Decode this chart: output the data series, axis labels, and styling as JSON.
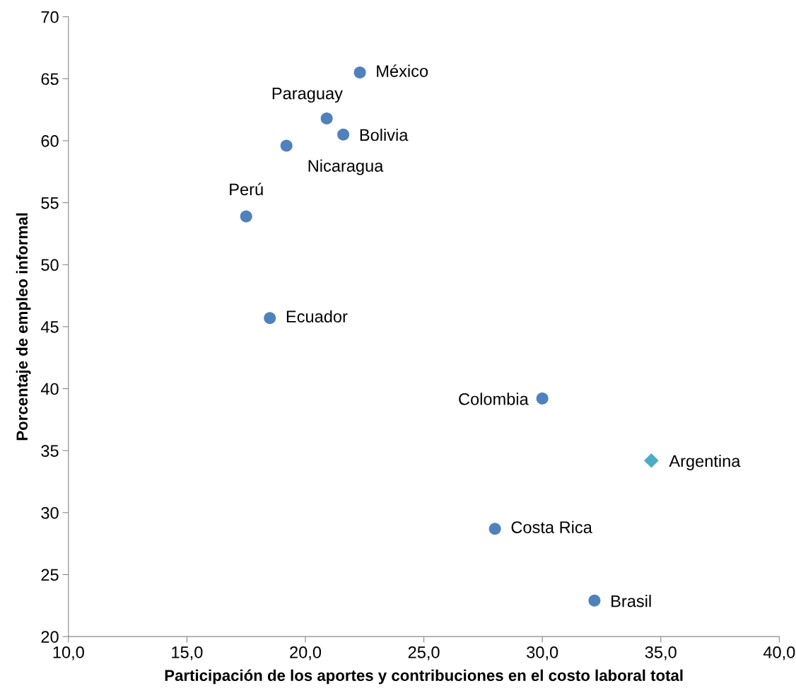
{
  "chart_data": {
    "type": "scatter",
    "xlabel": "Participación de los aportes y contribuciones en el costo laboral total",
    "ylabel": "Porcentaje de empleo informal",
    "series": [
      {
        "color": "#4f81bd",
        "marker": "circle",
        "x": [
          22.3,
          20.9,
          21.6,
          19.2,
          17.5,
          18.5,
          30.0,
          28.0,
          32.2
        ],
        "values": [
          65.5,
          61.8,
          60.5,
          59.6,
          53.9,
          45.7,
          39.2,
          28.7,
          22.9
        ]
      },
      {
        "color": "#4bacc6",
        "marker": "diamond",
        "x": [
          34.6
        ],
        "values": [
          34.2
        ]
      }
    ],
    "annotations": [
      {
        "text": "México",
        "x": 22.3,
        "y": 65.5
      },
      {
        "text": "Paraguay",
        "x": 20.9,
        "y": 61.8
      },
      {
        "text": "Bolivia",
        "x": 21.6,
        "y": 60.5
      },
      {
        "text": "Nicaragua",
        "x": 19.2,
        "y": 59.6
      },
      {
        "text": "Perú",
        "x": 17.5,
        "y": 53.9
      },
      {
        "text": "Ecuador",
        "x": 18.5,
        "y": 45.7
      },
      {
        "text": "Colombia",
        "x": 30.0,
        "y": 39.2
      },
      {
        "text": "Argentina",
        "x": 34.6,
        "y": 34.2
      },
      {
        "text": "Costa Rica",
        "x": 28.0,
        "y": 28.7
      },
      {
        "text": "Brasil",
        "x": 32.2,
        "y": 22.9
      }
    ],
    "xlim": [
      10,
      40
    ],
    "xticks": [
      {
        "value": 10,
        "label": "10,0"
      },
      {
        "value": 15,
        "label": "15,0"
      },
      {
        "value": 20,
        "label": "20,0"
      },
      {
        "value": 25,
        "label": "25,0"
      },
      {
        "value": 30,
        "label": "30,0"
      },
      {
        "value": 35,
        "label": "35,0"
      },
      {
        "value": 40,
        "label": "40,0"
      }
    ],
    "ylim": [
      20,
      70
    ],
    "yticks": [
      20,
      25,
      30,
      35,
      40,
      45,
      50,
      55,
      60,
      65,
      70
    ],
    "grid": false,
    "legend": false
  }
}
